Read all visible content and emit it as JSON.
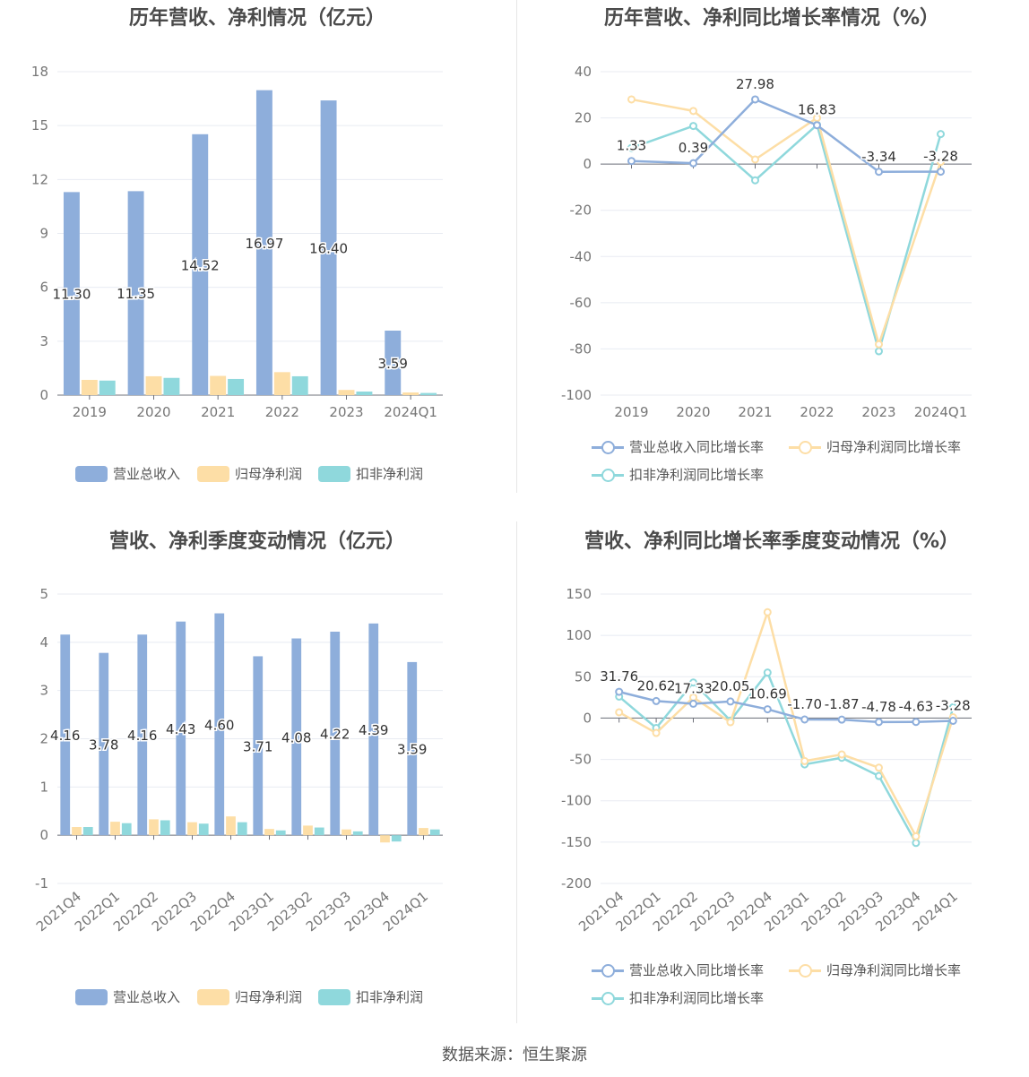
{
  "colors": {
    "revenue": "#8eaedb",
    "net": "#fddea6",
    "deducted": "#8fd8dc",
    "revenue_line": "#8eaedb",
    "net_line": "#fddea6",
    "deducted_line": "#8fd8dc"
  },
  "footer": "数据来源：恒生聚源",
  "chart_data": [
    {
      "type": "bar",
      "title": "历年营收、净利情况（亿元）",
      "categories": [
        "2019",
        "2020",
        "2021",
        "2022",
        "2023",
        "2024Q1"
      ],
      "ylim": [
        0,
        18
      ],
      "yticks": [
        0,
        3,
        6,
        9,
        12,
        15,
        18
      ],
      "series": [
        {
          "name": "营业总收入",
          "values": [
            11.3,
            11.35,
            14.52,
            16.97,
            16.4,
            3.59
          ],
          "labels": [
            "11.30",
            "11.35",
            "14.52",
            "16.97",
            "16.40",
            "3.59"
          ]
        },
        {
          "name": "归母净利润",
          "values": [
            0.85,
            1.05,
            1.07,
            1.28,
            0.29,
            0.15
          ]
        },
        {
          "name": "扣非净利润",
          "values": [
            0.81,
            0.96,
            0.9,
            1.05,
            0.2,
            0.12
          ]
        }
      ]
    },
    {
      "type": "line",
      "title": "历年营收、净利同比增长率情况（%）",
      "categories": [
        "2019",
        "2020",
        "2021",
        "2022",
        "2023",
        "2024Q1"
      ],
      "ylim": [
        -100,
        40
      ],
      "yticks": [
        -100,
        -80,
        -60,
        -40,
        -20,
        0,
        20,
        40
      ],
      "series": [
        {
          "name": "营业总收入同比增长率",
          "values": [
            1.33,
            0.39,
            27.98,
            16.83,
            -3.34,
            -3.28
          ],
          "labels": [
            "1.33",
            "0.39",
            "27.98",
            "16.83",
            "-3.34",
            "-3.28"
          ]
        },
        {
          "name": "归母净利润同比增长率",
          "values": [
            28.0,
            23.0,
            2.0,
            20.0,
            -78.0,
            1.0
          ]
        },
        {
          "name": "扣非净利润同比增长率",
          "values": [
            7.0,
            16.5,
            -7.0,
            17.0,
            -81.0,
            13.0
          ]
        }
      ]
    },
    {
      "type": "bar",
      "title": "营收、净利季度变动情况（亿元）",
      "categories": [
        "2021Q4",
        "2022Q1",
        "2022Q2",
        "2022Q3",
        "2022Q4",
        "2023Q1",
        "2023Q2",
        "2023Q3",
        "2023Q4",
        "2024Q1"
      ],
      "ylim": [
        -1,
        5
      ],
      "yticks": [
        -1,
        0,
        1,
        2,
        3,
        4,
        5
      ],
      "series": [
        {
          "name": "营业总收入",
          "values": [
            4.16,
            3.78,
            4.16,
            4.43,
            4.6,
            3.71,
            4.08,
            4.22,
            4.39,
            3.59
          ],
          "labels": [
            "4.16",
            "3.78",
            "4.16",
            "4.43",
            "4.60",
            "3.71",
            "4.08",
            "4.22",
            "4.39",
            "3.59"
          ]
        },
        {
          "name": "归母净利润",
          "values": [
            0.17,
            0.28,
            0.33,
            0.27,
            0.39,
            0.13,
            0.2,
            0.12,
            -0.15,
            0.15
          ]
        },
        {
          "name": "扣非净利润",
          "values": [
            0.17,
            0.25,
            0.31,
            0.24,
            0.27,
            0.1,
            0.16,
            0.08,
            -0.13,
            0.12
          ]
        }
      ]
    },
    {
      "type": "line",
      "title": "营收、净利同比增长率季度变动情况（%）",
      "categories": [
        "2021Q4",
        "2022Q1",
        "2022Q2",
        "2022Q3",
        "2022Q4",
        "2023Q1",
        "2023Q2",
        "2023Q3",
        "2023Q4",
        "2024Q1"
      ],
      "ylim": [
        -200,
        150
      ],
      "yticks": [
        -200,
        -150,
        -100,
        -50,
        0,
        50,
        100,
        150
      ],
      "series": [
        {
          "name": "营业总收入同比增长率",
          "values": [
            31.76,
            20.62,
            17.33,
            20.05,
            10.69,
            -1.7,
            -1.87,
            -4.78,
            -4.63,
            -3.28
          ],
          "labels": [
            "31.76",
            "20.62",
            "17.33",
            "20.05",
            "10.69",
            "-1.70",
            "-1.87",
            "-4.78",
            "-4.63",
            "-3.28"
          ]
        },
        {
          "name": "归母净利润同比增长率",
          "values": [
            7,
            -18,
            25,
            -5,
            128,
            -52,
            -44,
            -60,
            -143,
            1
          ]
        },
        {
          "name": "扣非净利润同比增长率",
          "values": [
            26,
            -12,
            43,
            -3,
            55,
            -56,
            -48,
            -70,
            -151,
            13
          ]
        }
      ]
    }
  ]
}
